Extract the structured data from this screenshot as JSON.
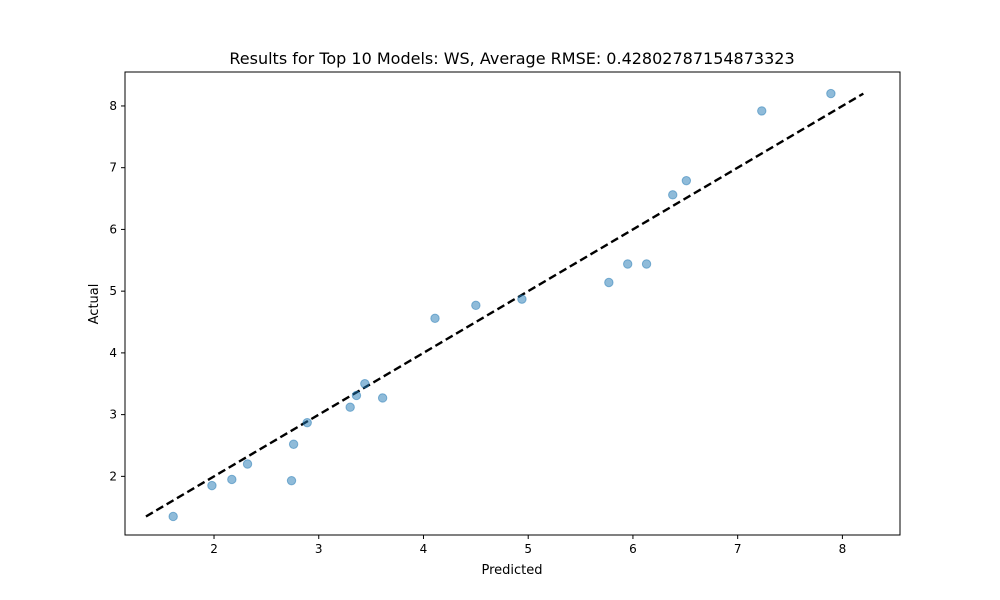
{
  "chart_data": {
    "type": "scatter",
    "title": "Results for Top 10 Models: WS, Average RMSE: 0.42802787154873323",
    "xlabel": "Predicted",
    "ylabel": "Actual",
    "xlim": [
      1.15,
      8.55
    ],
    "ylim": [
      1.05,
      8.55
    ],
    "xticks": [
      2,
      3,
      4,
      5,
      6,
      7,
      8
    ],
    "yticks": [
      2,
      3,
      4,
      5,
      6,
      7,
      8
    ],
    "grid": false,
    "points": [
      {
        "x": 1.61,
        "y": 1.35
      },
      {
        "x": 1.98,
        "y": 1.85
      },
      {
        "x": 2.17,
        "y": 1.95
      },
      {
        "x": 2.32,
        "y": 2.2
      },
      {
        "x": 2.74,
        "y": 1.93
      },
      {
        "x": 2.76,
        "y": 2.52
      },
      {
        "x": 2.89,
        "y": 2.87
      },
      {
        "x": 3.3,
        "y": 3.12
      },
      {
        "x": 3.36,
        "y": 3.31
      },
      {
        "x": 3.44,
        "y": 3.5
      },
      {
        "x": 3.61,
        "y": 3.27
      },
      {
        "x": 4.11,
        "y": 4.56
      },
      {
        "x": 4.5,
        "y": 4.77
      },
      {
        "x": 4.94,
        "y": 4.87
      },
      {
        "x": 5.77,
        "y": 5.14
      },
      {
        "x": 5.95,
        "y": 5.44
      },
      {
        "x": 6.13,
        "y": 5.44
      },
      {
        "x": 6.38,
        "y": 6.56
      },
      {
        "x": 6.51,
        "y": 6.79
      },
      {
        "x": 7.23,
        "y": 7.92
      },
      {
        "x": 7.89,
        "y": 8.2
      }
    ],
    "reference_line": {
      "x": [
        1.35,
        8.2
      ],
      "y": [
        1.35,
        8.2
      ],
      "style": "dashed",
      "color": "#000000"
    },
    "point_color": "#1f77b4"
  }
}
